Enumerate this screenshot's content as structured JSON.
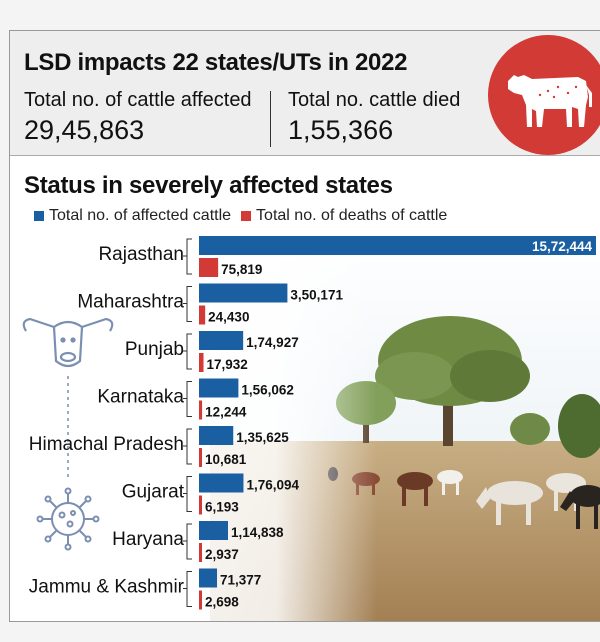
{
  "header": {
    "title": "LSD impacts 22 states/UTs in 2022",
    "affected_label": "Total no. of cattle affected",
    "affected_value": "29,45,863",
    "died_label": "Total no. cattle died",
    "died_value": "1,55,366"
  },
  "colors": {
    "affected": "#1a5fa1",
    "deaths": "#d23a35",
    "badge": "#d23a35"
  },
  "chart_data": {
    "type": "bar",
    "orientation": "horizontal",
    "title": "Status in severely affected states",
    "categories": [
      "Rajasthan",
      "Maharashtra",
      "Punjab",
      "Karnataka",
      "Himachal Pradesh",
      "Gujarat",
      "Haryana",
      "Jammu & Kashmir"
    ],
    "series": [
      {
        "name": "Total no. of affected cattle",
        "values": [
          1572444,
          350171,
          174927,
          156062,
          135625,
          176094,
          114838,
          71377
        ],
        "labels": [
          "15,72,444",
          "3,50,171",
          "1,74,927",
          "1,56,062",
          "1,35,625",
          "1,76,094",
          "1,14,838",
          "71,377"
        ]
      },
      {
        "name": "Total no. of deaths of cattle",
        "values": [
          75819,
          24430,
          17932,
          12244,
          10681,
          6193,
          2937,
          2698
        ],
        "labels": [
          "75,819",
          "24,430",
          "17,932",
          "12,244",
          "10,681",
          "6,193",
          "2,937",
          "2,698"
        ]
      }
    ],
    "xlim": [
      0,
      1572444
    ],
    "legend": "top-left"
  }
}
